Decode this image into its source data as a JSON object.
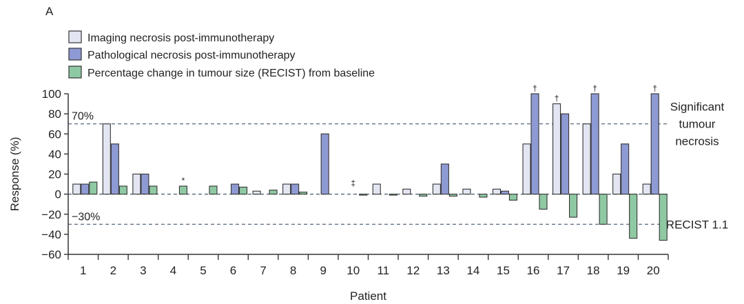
{
  "chart_data": {
    "type": "bar",
    "panel_label": "A",
    "xlabel": "Patient",
    "ylabel": "Response (%)",
    "ylim": [
      -60,
      100
    ],
    "yticks": [
      -60,
      -40,
      -20,
      0,
      20,
      40,
      60,
      80,
      100
    ],
    "categories": [
      "1",
      "2",
      "3",
      "4",
      "5",
      "6",
      "7",
      "8",
      "9",
      "10",
      "11",
      "12",
      "13",
      "14",
      "15",
      "16",
      "17",
      "18",
      "19",
      "20"
    ],
    "series": [
      {
        "name": "Imaging necrosis post-immunotherapy",
        "color": "#e3e6f2",
        "values": [
          10,
          70,
          20,
          null,
          null,
          null,
          3,
          10,
          null,
          null,
          10,
          5,
          10,
          5,
          5,
          50,
          90,
          70,
          20,
          10
        ]
      },
      {
        "name": "Pathological necrosis post-immunotherapy",
        "color": "#8e9ad3",
        "values": [
          10,
          50,
          20,
          null,
          null,
          10,
          null,
          10,
          60,
          null,
          null,
          null,
          30,
          null,
          3,
          100,
          80,
          100,
          50,
          100
        ]
      },
      {
        "name": "Percentage change in tumour size (RECIST)  from baseline",
        "color": "#8fc9a3",
        "values": [
          12,
          8,
          8,
          8,
          8,
          7,
          4,
          2,
          null,
          -1,
          -1,
          -2,
          -2,
          -3,
          -6,
          -15,
          -23,
          -30,
          -44,
          -46
        ]
      }
    ],
    "reference_lines": [
      {
        "value": 70,
        "left_label": "70%",
        "right_label_lines": [
          "Significant",
          "tumour",
          "necrosis"
        ]
      },
      {
        "value": -30,
        "left_label": "−30%",
        "right_label_lines": [
          "RECIST 1.1"
        ]
      }
    ],
    "annotations": [
      {
        "patient": "4",
        "symbol": "*"
      },
      {
        "patient": "10",
        "symbol": "‡"
      },
      {
        "patient": "16",
        "symbol": "†"
      },
      {
        "patient": "17",
        "symbol": "†"
      },
      {
        "patient": "18",
        "symbol": "†"
      },
      {
        "patient": "20",
        "symbol": "†"
      }
    ]
  }
}
